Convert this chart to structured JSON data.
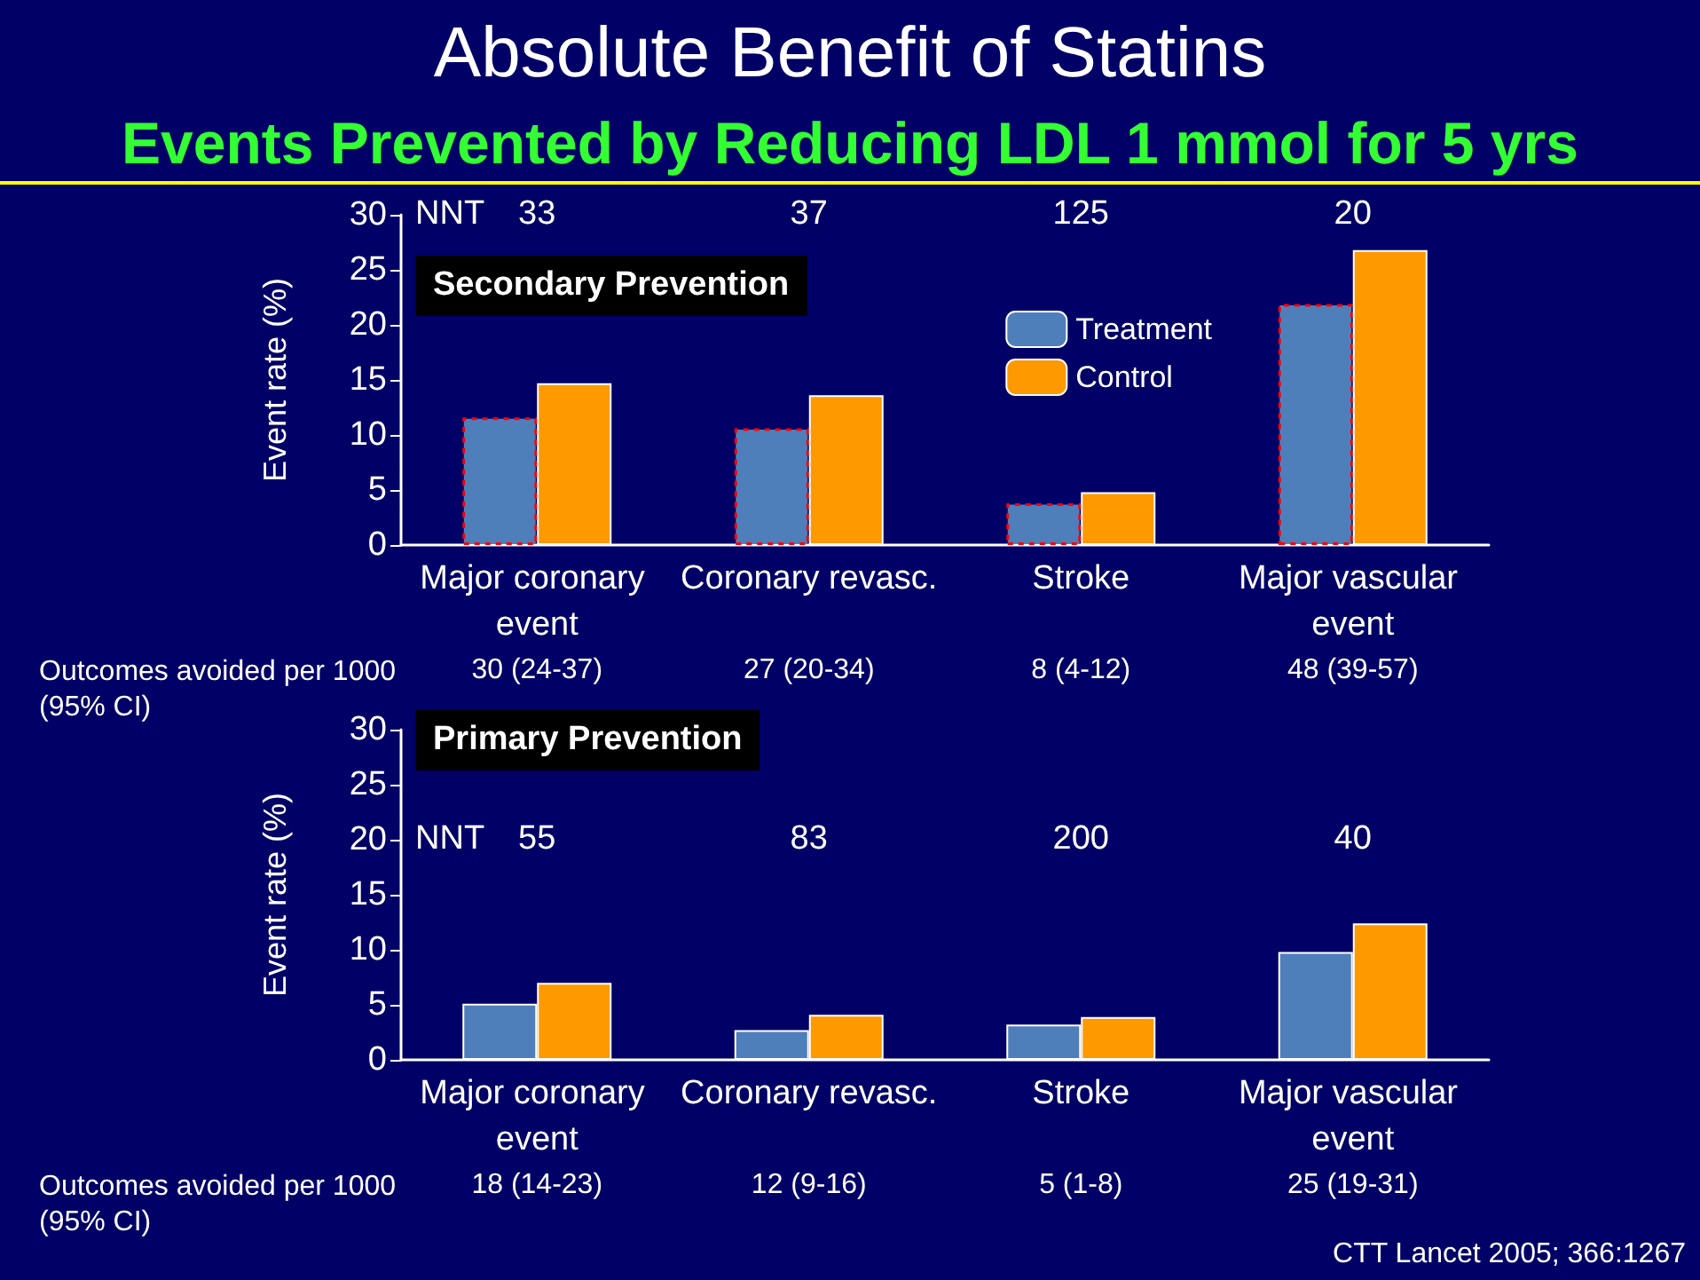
{
  "chart_data": [
    {
      "type": "bar",
      "title": "Absolute Benefit of Statins",
      "subtitle": "Events Prevented by Reducing LDL 1 mmol for 5 yrs",
      "ylabel": "Event rate (%)",
      "categories": [
        "Major coronary event",
        "Coronary revasc.",
        "Stroke",
        "Major vascular event"
      ],
      "series": [
        {
          "name": "Treatment",
          "color": "#4f7fba",
          "values": [
            11.6,
            10.6,
            3.8,
            21.9
          ]
        },
        {
          "name": "Control",
          "color": "#ff9900",
          "values": [
            14.7,
            13.6,
            4.8,
            26.8
          ]
        }
      ],
      "ylim": [
        0,
        30
      ],
      "yticks": [
        0,
        5,
        10,
        15,
        20,
        25,
        30
      ],
      "grid": false,
      "legend": "top right",
      "annotations": [
        "Secondary Prevention",
        "NNT",
        "33",
        "37",
        "125",
        "20",
        "Outcomes avoided per 1000 (95% CI)",
        "30 (24-37)",
        "27 (20-34)",
        "8 (4-12)",
        "48 (39-57)"
      ]
    },
    {
      "type": "bar",
      "ylabel": "Event rate (%)",
      "categories": [
        "Major coronary event",
        "Coronary revasc.",
        "Stroke",
        "Major vascular event"
      ],
      "series": [
        {
          "color": "#4f7fba",
          "values": [
            5.1,
            2.7,
            3.2,
            9.8
          ]
        },
        {
          "color": "#ff9900",
          "values": [
            7.0,
            4.1,
            3.9,
            12.4
          ]
        }
      ],
      "ylim": [
        0,
        30
      ],
      "yticks": [
        0,
        5,
        10,
        15,
        20,
        25,
        30
      ],
      "grid": false,
      "legend": false,
      "annotations": [
        "Primary Prevention",
        "NNT",
        "55",
        "83",
        "200",
        "40",
        "Outcomes avoided per 1000 (95% CI)",
        "18 (14-23)",
        "12 (9-16)",
        "5 (1-8)",
        "25 (19-31)",
        "CTT Lancet 2005; 366:1267"
      ]
    }
  ]
}
